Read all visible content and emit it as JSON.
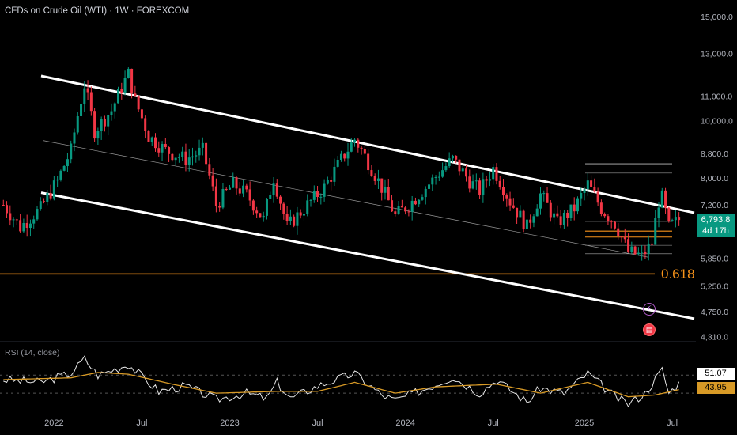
{
  "header": {
    "title": "CFDs on Crude Oil (WTI) · 1W · FOREXCOM"
  },
  "colors": {
    "background": "#000000",
    "up": "#089981",
    "down": "#f23645",
    "fib_line": "#f7931a",
    "channel": "#ffffff",
    "rsi_line": "#e6e6e6",
    "rsi_ma": "#d89a26",
    "axis_text": "#b2b5be"
  },
  "annotations": {
    "fib_label": "0.618"
  },
  "current": {
    "price_label": "6,793.8",
    "countdown": "4d 17h",
    "rsi_value": "51.07",
    "rsi_ma_value": "43.95"
  },
  "rsi_panel": {
    "label": "RSI (14, close)",
    "levels": [
      60,
      40
    ],
    "ticks": [
      "60.00"
    ]
  },
  "icons": {
    "event": "lightning-icon",
    "flag": "us-flag-icon"
  },
  "chart_data": {
    "type": "candlestick",
    "y_scale": "log",
    "price_ticks": [
      "15,000.0",
      "13,000.0",
      "11,000.0",
      "10,000.0",
      "8,800.0",
      "8,000.0",
      "7,200.0",
      "5,850.0",
      "5,250.0",
      "4,750.0",
      "4,310.0"
    ],
    "price_tick_values": [
      15000,
      13000,
      11000,
      10000,
      8800,
      8000,
      7200,
      5850,
      5250,
      4750,
      4310
    ],
    "x_ticks": [
      {
        "label": "2022",
        "date": "2022-01-03"
      },
      {
        "label": "Jul",
        "date": "2022-07-04"
      },
      {
        "label": "2023",
        "date": "2023-01-02"
      },
      {
        "label": "Jul",
        "date": "2023-07-03"
      },
      {
        "label": "2024",
        "date": "2024-01-01"
      },
      {
        "label": "Jul",
        "date": "2024-07-01"
      },
      {
        "label": "2025",
        "date": "2025-01-06"
      },
      {
        "label": "Jul",
        "date": "2025-07-07"
      }
    ],
    "x_range": [
      "2021-09-13",
      "2025-08-25"
    ],
    "y_range": [
      4250,
      16000
    ],
    "price_path": [
      [
        "2021-09-20",
        7200
      ],
      [
        "2021-10-25",
        6600
      ],
      [
        "2021-12-06",
        7100
      ],
      [
        "2022-01-10",
        7900
      ],
      [
        "2022-02-07",
        8900
      ],
      [
        "2022-03-07",
        11500
      ],
      [
        "2022-03-28",
        9600
      ],
      [
        "2022-05-02",
        10400
      ],
      [
        "2022-06-06",
        12000
      ],
      [
        "2022-06-20",
        10800
      ],
      [
        "2022-07-18",
        9400
      ],
      [
        "2022-08-22",
        8900
      ],
      [
        "2022-10-03",
        8600
      ],
      [
        "2022-11-07",
        8900
      ],
      [
        "2022-12-05",
        7200
      ],
      [
        "2023-01-09",
        7800
      ],
      [
        "2023-02-06",
        7500
      ],
      [
        "2023-03-13",
        6800
      ],
      [
        "2023-04-03",
        8000
      ],
      [
        "2023-05-01",
        6600
      ],
      [
        "2023-06-05",
        7100
      ],
      [
        "2023-07-17",
        7700
      ],
      [
        "2023-08-14",
        8400
      ],
      [
        "2023-09-18",
        9300
      ],
      [
        "2023-10-16",
        8500
      ],
      [
        "2023-11-20",
        7500
      ],
      [
        "2023-12-11",
        6900
      ],
      [
        "2024-01-08",
        7200
      ],
      [
        "2024-02-12",
        7700
      ],
      [
        "2024-04-08",
        8600
      ],
      [
        "2024-05-13",
        7900
      ],
      [
        "2024-06-03",
        7600
      ],
      [
        "2024-07-01",
        8300
      ],
      [
        "2024-08-05",
        7300
      ],
      [
        "2024-09-09",
        6600
      ],
      [
        "2024-10-07",
        7500
      ],
      [
        "2024-11-11",
        6700
      ],
      [
        "2024-12-16",
        7100
      ],
      [
        "2025-01-13",
        7800
      ],
      [
        "2025-02-10",
        7100
      ],
      [
        "2025-03-10",
        6700
      ],
      [
        "2025-04-07",
        6000
      ],
      [
        "2025-05-05",
        5900
      ],
      [
        "2025-05-26",
        6200
      ],
      [
        "2025-06-09",
        7300
      ],
      [
        "2025-06-16",
        7400
      ],
      [
        "2025-06-30",
        6600
      ],
      [
        "2025-07-21",
        6800
      ]
    ],
    "fib_level": {
      "label": "0.618",
      "value": 5500
    },
    "rsi_path": [
      [
        "2021-09-20",
        55
      ],
      [
        "2021-12-06",
        52
      ],
      [
        "2022-02-07",
        62
      ],
      [
        "2022-03-07",
        78
      ],
      [
        "2022-04-04",
        60
      ],
      [
        "2022-06-06",
        72
      ],
      [
        "2022-08-08",
        42
      ],
      [
        "2022-10-03",
        48
      ],
      [
        "2022-12-05",
        33
      ],
      [
        "2023-02-06",
        40
      ],
      [
        "2023-03-20",
        34
      ],
      [
        "2023-04-10",
        52
      ],
      [
        "2023-05-08",
        34
      ],
      [
        "2023-07-03",
        48
      ],
      [
        "2023-09-18",
        62
      ],
      [
        "2023-11-13",
        38
      ],
      [
        "2023-12-11",
        32
      ],
      [
        "2024-02-12",
        45
      ],
      [
        "2024-04-08",
        58
      ],
      [
        "2024-06-03",
        40
      ],
      [
        "2024-07-08",
        55
      ],
      [
        "2024-09-09",
        30
      ],
      [
        "2024-10-07",
        46
      ],
      [
        "2024-11-25",
        40
      ],
      [
        "2025-01-13",
        62
      ],
      [
        "2025-03-10",
        36
      ],
      [
        "2025-04-07",
        28
      ],
      [
        "2025-05-12",
        40
      ],
      [
        "2025-06-16",
        66
      ],
      [
        "2025-06-30",
        40
      ],
      [
        "2025-07-21",
        51
      ]
    ],
    "rsi_ma_path": [
      [
        "2021-09-20",
        55
      ],
      [
        "2022-02-07",
        57
      ],
      [
        "2022-04-04",
        63
      ],
      [
        "2022-06-06",
        61
      ],
      [
        "2022-09-05",
        50
      ],
      [
        "2022-12-05",
        40
      ],
      [
        "2023-04-10",
        42
      ],
      [
        "2023-07-03",
        42
      ],
      [
        "2023-09-18",
        52
      ],
      [
        "2023-12-11",
        40
      ],
      [
        "2024-03-04",
        47
      ],
      [
        "2024-07-08",
        50
      ],
      [
        "2024-10-07",
        40
      ],
      [
        "2025-01-13",
        52
      ],
      [
        "2025-04-07",
        36
      ],
      [
        "2025-06-02",
        38
      ],
      [
        "2025-07-21",
        44
      ]
    ]
  }
}
